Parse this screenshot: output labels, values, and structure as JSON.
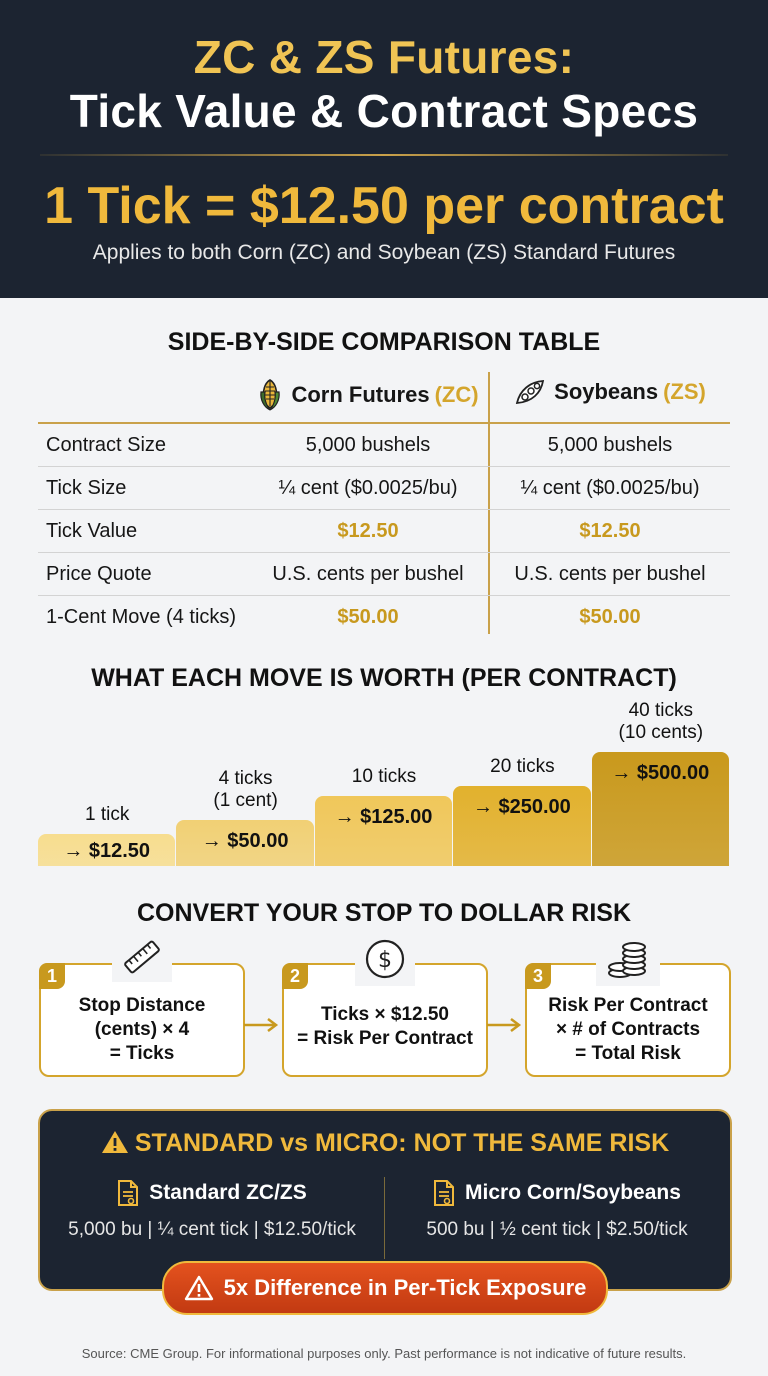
{
  "header": {
    "title_line1": "ZC & ZS Futures:",
    "title_line2": "Tick Value & Contract Specs",
    "tick_headline": "1 Tick = $12.50 per contract",
    "subtitle": "Applies to both Corn (ZC) and Soybean (ZS) Standard Futures"
  },
  "comparison": {
    "title": "SIDE-BY-SIDE COMPARISON TABLE",
    "col_zc": {
      "name": "Corn Futures",
      "code": "(ZC)",
      "icon": "corn-icon"
    },
    "col_zs": {
      "name": "Soybeans",
      "code": "(ZS)",
      "icon": "soybean-icon"
    },
    "rows": [
      {
        "label": "Contract Size",
        "zc": "5,000 bushels",
        "zs": "5,000 bushels"
      },
      {
        "label": "Tick Size",
        "zc": "¼ cent ($0.0025/bu)",
        "zs": "¼ cent ($0.0025/bu)"
      },
      {
        "label": "Tick Value",
        "zc": "$12.50",
        "zs": "$12.50"
      },
      {
        "label": "Price Quote",
        "zc": "U.S. cents per bushel",
        "zs": "U.S. cents per bushel"
      },
      {
        "label": "1-Cent Move (4 ticks)",
        "zc": "$50.00",
        "zs": "$50.00"
      }
    ]
  },
  "moves": {
    "title": "WHAT EACH MOVE IS WORTH (PER CONTRACT)",
    "steps": [
      {
        "label1": "1 tick",
        "label2": "",
        "value": "→ $12.50",
        "ticks": 1
      },
      {
        "label1": "4 ticks",
        "label2": "(1 cent)",
        "value": "→ $50.00",
        "ticks": 4
      },
      {
        "label1": "10 ticks",
        "label2": "",
        "value": "→ $125.00",
        "ticks": 10
      },
      {
        "label1": "20 ticks",
        "label2": "",
        "value": "→ $250.00",
        "ticks": 20
      },
      {
        "label1": "40 ticks",
        "label2": "(10 cents)",
        "value": "→ $500.00",
        "ticks": 40
      }
    ],
    "colors": [
      "#f7dd8e",
      "#f1d074",
      "#f0c75a",
      "#e2b12d",
      "#c9991c"
    ]
  },
  "convert": {
    "title": "CONVERT YOUR STOP TO DOLLAR RISK",
    "steps": [
      {
        "num": "1",
        "icon": "ruler-icon",
        "line1": "Stop Distance",
        "line2": "(cents) × 4",
        "line3": "= Ticks"
      },
      {
        "num": "2",
        "icon": "dollar-icon",
        "line1": "Ticks × $12.50",
        "line2": "= Risk Per Contract",
        "line3": ""
      },
      {
        "num": "3",
        "icon": "coins-icon",
        "line1": "Risk Per Contract",
        "line2": "× # of Contracts",
        "line3": "= Total Risk"
      }
    ]
  },
  "warning": {
    "title": "STANDARD vs MICRO: NOT THE SAME RISK",
    "standard": {
      "name": "Standard ZC/ZS",
      "detail": "5,000 bu | ¼ cent tick | $12.50/tick"
    },
    "micro": {
      "name": "Micro Corn/Soybeans",
      "detail": "500 bu | ½ cent tick | $2.50/tick"
    },
    "pill": "5x Difference in Per-Tick Exposure"
  },
  "source": "Source: CME Group. For informational purposes only. Past performance is not indicative of future results."
}
